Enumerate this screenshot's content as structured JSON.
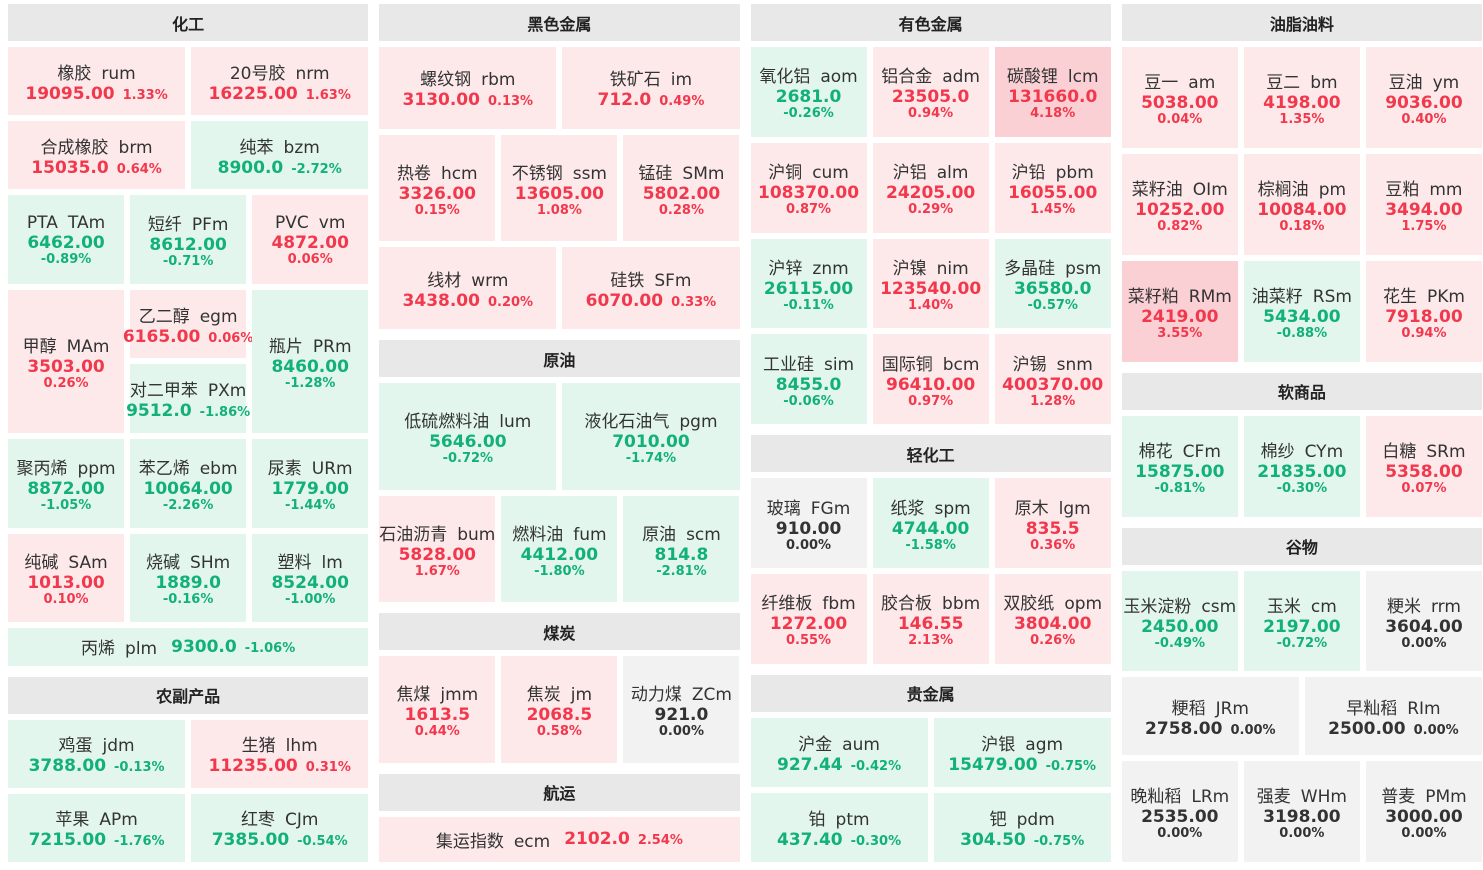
{
  "columns": [
    {
      "sections": [
        {
          "title": "化工",
          "rows": [
            [
              {
                "name": "橡胶",
                "code": "rum",
                "price": "19095.00",
                "change": "1.33%"
              },
              {
                "name": "20号胶",
                "code": "nrm",
                "price": "16225.00",
                "change": "1.63%"
              }
            ],
            [
              {
                "name": "合成橡胶",
                "code": "brm",
                "price": "15035.0",
                "change": "0.64%"
              },
              {
                "name": "纯苯",
                "code": "bzm",
                "price": "8900.0",
                "change": "-2.72%"
              }
            ],
            [
              {
                "name": "PTA",
                "code": "TAm",
                "price": "6462.00",
                "change": "-0.89%"
              },
              {
                "name": "短纤",
                "code": "PFm",
                "price": "8612.00",
                "change": "-0.71%"
              },
              {
                "name": "PVC",
                "code": "vm",
                "price": "4872.00",
                "change": "0.06%"
              }
            ],
            [
              {
                "name": "甲醇",
                "code": "MAm",
                "price": "3503.00",
                "change": "0.26%"
              },
              [
                {
                  "name": "乙二醇",
                  "code": "egm",
                  "price": "6165.00",
                  "change": "0.06%"
                },
                {
                  "name": "对二甲苯",
                  "code": "PXm",
                  "price": "9512.0",
                  "change": "-1.86%"
                }
              ],
              {
                "name": "瓶片",
                "code": "PRm",
                "price": "8460.00",
                "change": "-1.28%"
              }
            ],
            [
              {
                "name": "聚丙烯",
                "code": "ppm",
                "price": "8872.00",
                "change": "-1.05%"
              },
              {
                "name": "苯乙烯",
                "code": "ebm",
                "price": "10064.00",
                "change": "-2.26%"
              },
              {
                "name": "尿素",
                "code": "URm",
                "price": "1779.00",
                "change": "-1.44%"
              }
            ],
            [
              {
                "name": "纯碱",
                "code": "SAm",
                "price": "1013.00",
                "change": "0.10%"
              },
              {
                "name": "烧碱",
                "code": "SHm",
                "price": "1889.0",
                "change": "-0.16%"
              },
              {
                "name": "塑料",
                "code": "lm",
                "price": "8524.00",
                "change": "-1.00%"
              }
            ],
            [
              {
                "name": "丙烯",
                "code": "plm",
                "price": "9300.0",
                "change": "-1.06%"
              }
            ]
          ]
        },
        {
          "title": "农副产品",
          "rows": [
            [
              {
                "name": "鸡蛋",
                "code": "jdm",
                "price": "3788.00",
                "change": "-0.13%"
              },
              {
                "name": "生猪",
                "code": "lhm",
                "price": "11235.00",
                "change": "0.31%"
              }
            ],
            [
              {
                "name": "苹果",
                "code": "APm",
                "price": "7215.00",
                "change": "-1.76%"
              },
              {
                "name": "红枣",
                "code": "CJm",
                "price": "7385.00",
                "change": "-0.54%"
              }
            ]
          ]
        }
      ]
    },
    {
      "sections": [
        {
          "title": "黑色金属",
          "rows": [
            [
              {
                "name": "螺纹钢",
                "code": "rbm",
                "price": "3130.00",
                "change": "0.13%"
              },
              {
                "name": "铁矿石",
                "code": "im",
                "price": "712.0",
                "change": "0.49%"
              }
            ],
            [
              {
                "name": "热卷",
                "code": "hcm",
                "price": "3326.00",
                "change": "0.15%"
              },
              {
                "name": "不锈钢",
                "code": "ssm",
                "price": "13605.00",
                "change": "1.08%"
              },
              {
                "name": "锰硅",
                "code": "SMm",
                "price": "5802.00",
                "change": "0.28%"
              }
            ],
            [
              {
                "name": "线材",
                "code": "wrm",
                "price": "3438.00",
                "change": "0.20%"
              },
              {
                "name": "硅铁",
                "code": "SFm",
                "price": "6070.00",
                "change": "0.33%"
              }
            ]
          ]
        },
        {
          "title": "原油",
          "rows": [
            [
              {
                "name": "低硫燃料油",
                "code": "lum",
                "price": "5646.00",
                "change": "-0.72%"
              },
              {
                "name": "液化石油气",
                "code": "pgm",
                "price": "7010.00",
                "change": "-1.74%"
              }
            ],
            [
              {
                "name": "石油沥青",
                "code": "bum",
                "price": "5828.00",
                "change": "1.67%"
              },
              {
                "name": "燃料油",
                "code": "fum",
                "price": "4412.00",
                "change": "-1.80%"
              },
              {
                "name": "原油",
                "code": "scm",
                "price": "814.8",
                "change": "-2.81%"
              }
            ]
          ]
        },
        {
          "title": "煤炭",
          "rows": [
            [
              {
                "name": "焦煤",
                "code": "jmm",
                "price": "1613.5",
                "change": "0.44%"
              },
              {
                "name": "焦炭",
                "code": "jm",
                "price": "2068.5",
                "change": "0.58%"
              },
              {
                "name": "动力煤",
                "code": "ZCm",
                "price": "921.0",
                "change": "0.00%"
              }
            ]
          ]
        },
        {
          "title": "航运",
          "rows": [
            [
              {
                "name": "集运指数",
                "code": "ecm",
                "price": "2102.0",
                "change": "2.54%"
              }
            ]
          ]
        }
      ]
    },
    {
      "sections": [
        {
          "title": "有色金属",
          "rows": [
            [
              {
                "name": "氧化铝",
                "code": "aom",
                "price": "2681.0",
                "change": "-0.26%"
              },
              {
                "name": "铝合金",
                "code": "adm",
                "price": "23505.0",
                "change": "0.94%"
              },
              {
                "name": "碳酸锂",
                "code": "lcm",
                "price": "131660.0",
                "change": "4.18%"
              }
            ],
            [
              {
                "name": "沪铜",
                "code": "cum",
                "price": "108370.00",
                "change": "0.87%"
              },
              {
                "name": "沪铝",
                "code": "alm",
                "price": "24205.00",
                "change": "0.29%"
              },
              {
                "name": "沪铅",
                "code": "pbm",
                "price": "16055.00",
                "change": "1.45%"
              }
            ],
            [
              {
                "name": "沪锌",
                "code": "znm",
                "price": "26115.00",
                "change": "-0.11%"
              },
              {
                "name": "沪镍",
                "code": "nim",
                "price": "123540.00",
                "change": "1.40%"
              },
              {
                "name": "多晶硅",
                "code": "psm",
                "price": "36580.0",
                "change": "-0.57%"
              }
            ],
            [
              {
                "name": "工业硅",
                "code": "sim",
                "price": "8455.0",
                "change": "-0.06%"
              },
              {
                "name": "国际铜",
                "code": "bcm",
                "price": "96410.00",
                "change": "0.97%"
              },
              {
                "name": "沪锡",
                "code": "snm",
                "price": "400370.00",
                "change": "1.28%"
              }
            ]
          ]
        },
        {
          "title": "轻化工",
          "rows": [
            [
              {
                "name": "玻璃",
                "code": "FGm",
                "price": "910.00",
                "change": "0.00%"
              },
              {
                "name": "纸浆",
                "code": "spm",
                "price": "4744.00",
                "change": "-1.58%"
              },
              {
                "name": "原木",
                "code": "lgm",
                "price": "835.5",
                "change": "0.36%"
              }
            ],
            [
              {
                "name": "纤维板",
                "code": "fbm",
                "price": "1272.00",
                "change": "0.55%"
              },
              {
                "name": "胶合板",
                "code": "bbm",
                "price": "146.55",
                "change": "2.13%"
              },
              {
                "name": "双胶纸",
                "code": "opm",
                "price": "3804.00",
                "change": "0.26%"
              }
            ]
          ]
        },
        {
          "title": "贵金属",
          "rows": [
            [
              {
                "name": "沪金",
                "code": "aum",
                "price": "927.44",
                "change": "-0.42%"
              },
              {
                "name": "沪银",
                "code": "agm",
                "price": "15479.00",
                "change": "-0.75%"
              }
            ],
            [
              {
                "name": "铂",
                "code": "ptm",
                "price": "437.40",
                "change": "-0.30%"
              },
              {
                "name": "钯",
                "code": "pdm",
                "price": "304.50",
                "change": "-0.75%"
              }
            ]
          ]
        }
      ]
    },
    {
      "sections": [
        {
          "title": "油脂油料",
          "rows": [
            [
              {
                "name": "豆一",
                "code": "am",
                "price": "5038.00",
                "change": "0.04%"
              },
              {
                "name": "豆二",
                "code": "bm",
                "price": "4198.00",
                "change": "1.35%"
              },
              {
                "name": "豆油",
                "code": "ym",
                "price": "9036.00",
                "change": "0.40%"
              }
            ],
            [
              {
                "name": "菜籽油",
                "code": "OIm",
                "price": "10252.00",
                "change": "0.82%"
              },
              {
                "name": "棕榈油",
                "code": "pm",
                "price": "10084.00",
                "change": "0.18%"
              },
              {
                "name": "豆粕",
                "code": "mm",
                "price": "3494.00",
                "change": "1.75%"
              }
            ],
            [
              {
                "name": "菜籽粕",
                "code": "RMm",
                "price": "2419.00",
                "change": "3.55%"
              },
              {
                "name": "油菜籽",
                "code": "RSm",
                "price": "5434.00",
                "change": "-0.88%"
              },
              {
                "name": "花生",
                "code": "PKm",
                "price": "7918.00",
                "change": "0.94%"
              }
            ]
          ]
        },
        {
          "title": "软商品",
          "rows": [
            [
              {
                "name": "棉花",
                "code": "CFm",
                "price": "15875.00",
                "change": "-0.81%"
              },
              {
                "name": "棉纱",
                "code": "CYm",
                "price": "21835.00",
                "change": "-0.30%"
              },
              {
                "name": "白糖",
                "code": "SRm",
                "price": "5358.00",
                "change": "0.07%"
              }
            ]
          ]
        },
        {
          "title": "谷物",
          "rows": [
            [
              {
                "name": "玉米淀粉",
                "code": "csm",
                "price": "2450.00",
                "change": "-0.49%"
              },
              {
                "name": "玉米",
                "code": "cm",
                "price": "2197.00",
                "change": "-0.72%"
              },
              {
                "name": "粳米",
                "code": "rrm",
                "price": "3604.00",
                "change": "0.00%"
              }
            ],
            [
              {
                "name": "粳稻",
                "code": "JRm",
                "price": "2758.00",
                "change": "0.00%"
              },
              {
                "name": "早籼稻",
                "code": "RIm",
                "price": "2500.00",
                "change": "0.00%"
              }
            ],
            [
              {
                "name": "晚籼稻",
                "code": "LRm",
                "price": "2535.00",
                "change": "0.00%"
              },
              {
                "name": "强麦",
                "code": "WHm",
                "price": "3198.00",
                "change": "0.00%"
              },
              {
                "name": "普麦",
                "code": "PMm",
                "price": "3000.00",
                "change": "0.00%"
              }
            ]
          ]
        }
      ]
    }
  ]
}
